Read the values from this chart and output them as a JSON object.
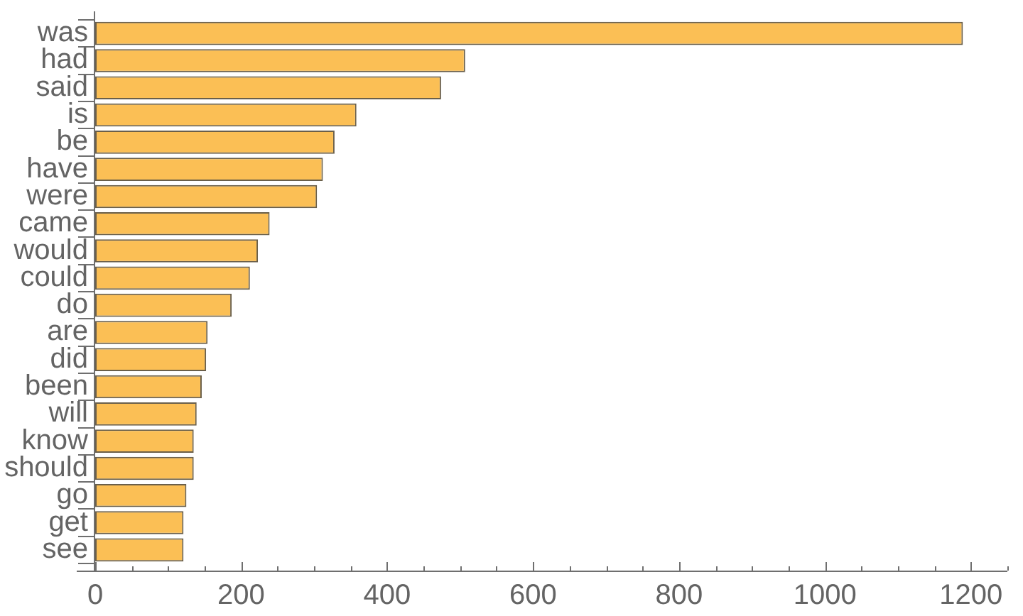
{
  "chart_data": {
    "type": "bar",
    "orientation": "horizontal",
    "categories": [
      "was",
      "had",
      "said",
      "is",
      "be",
      "have",
      "were",
      "came",
      "would",
      "could",
      "do",
      "are",
      "did",
      "been",
      "will",
      "know",
      "should",
      "go",
      "get",
      "see"
    ],
    "values": [
      1189,
      507,
      474,
      358,
      328,
      312,
      304,
      239,
      223,
      212,
      187,
      154,
      152,
      146,
      139,
      135,
      135,
      125,
      121,
      121
    ],
    "color": "#fbbf55",
    "xlim": [
      0,
      1250
    ],
    "xticks": [
      0,
      {
        "value": 50,
        "label": null
      },
      {
        "value": 100,
        "label": null
      },
      {
        "value": 150,
        "label": null
      },
      200,
      {
        "value": 250,
        "label": null
      },
      {
        "value": 300,
        "label": null
      },
      {
        "value": 350,
        "label": null
      },
      400,
      {
        "value": 450,
        "label": null
      },
      {
        "value": 500,
        "label": null
      },
      {
        "value": 550,
        "label": null
      },
      600,
      {
        "value": 650,
        "label": null
      },
      {
        "value": 700,
        "label": null
      },
      {
        "value": 750,
        "label": null
      },
      800,
      {
        "value": 850,
        "label": null
      },
      {
        "value": 900,
        "label": null
      },
      {
        "value": 950,
        "label": null
      },
      1000,
      {
        "value": 1050,
        "label": null
      },
      {
        "value": 1100,
        "label": null
      },
      {
        "value": 1150,
        "label": null
      },
      1200,
      {
        "value": 1250,
        "label": null
      }
    ]
  }
}
